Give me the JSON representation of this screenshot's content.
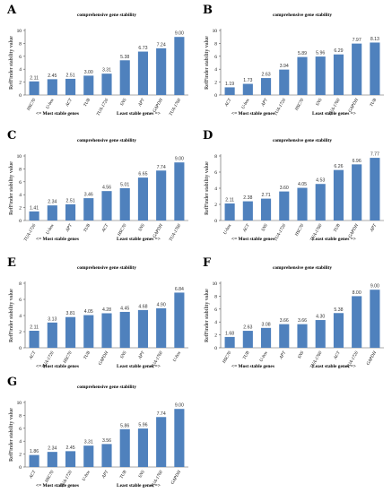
{
  "chart_data": [
    {
      "type": "bar",
      "panel": "A",
      "title": "comprehensive gene stability",
      "ylabel": "RefFinder stability value",
      "ylim": [
        0,
        10
      ],
      "yticks": [
        "0",
        "2",
        "4",
        "6",
        "8",
        "10"
      ],
      "categories": [
        "HSC70",
        "U-box",
        "ACT",
        "TUB",
        "TUA-1726",
        "SNS",
        "APT",
        "GAPDH",
        "TUA-1760"
      ],
      "values": [
        2.11,
        2.45,
        2.51,
        3.0,
        3.31,
        5.38,
        6.73,
        7.24,
        9.0
      ],
      "value_labels": [
        "2.11",
        "2.45",
        "2.51",
        "3.00",
        "3.31",
        "5.38",
        "6.73",
        "7.24",
        "9.00"
      ],
      "footer_left": "<= Most stable genes",
      "footer_right": "Least stable genes =>",
      "grid": false,
      "legend": "none"
    },
    {
      "type": "bar",
      "panel": "B",
      "title": "comprehensive gene stability",
      "ylabel": "RefFinder stability value",
      "ylim": [
        0,
        10
      ],
      "yticks": [
        "0",
        "2",
        "4",
        "6",
        "8",
        "10"
      ],
      "categories": [
        "ACT",
        "U-box",
        "APT",
        "TUA-1726",
        "HSC70",
        "SNS",
        "TUA-1760",
        "GAPDH",
        "TUB"
      ],
      "values": [
        1.19,
        1.73,
        2.63,
        3.94,
        5.89,
        5.96,
        6.29,
        7.97,
        8.13
      ],
      "value_labels": [
        "1.19",
        "1.73",
        "2.63",
        "3.94",
        "5.89",
        "5.96",
        "6.29",
        "7.97",
        "8.13"
      ],
      "footer_left": "<= Most stable genes",
      "footer_right": "Least stable genes =>",
      "grid": false,
      "legend": "none"
    },
    {
      "type": "bar",
      "panel": "C",
      "title": "comprehensive gene stability",
      "ylabel": "RefFinder stability value",
      "ylim": [
        0,
        10
      ],
      "yticks": [
        "0",
        "2",
        "4",
        "6",
        "8",
        "10"
      ],
      "categories": [
        "TUA-1726",
        "U-box",
        "APT",
        "TUB",
        "ACT",
        "HSC70",
        "SNS",
        "GAPDH",
        "TUA-1760"
      ],
      "values": [
        1.41,
        2.34,
        2.51,
        3.46,
        4.56,
        5.01,
        6.65,
        7.74,
        9.0
      ],
      "value_labels": [
        "1.41",
        "2.34",
        "2.51",
        "3.46",
        "4.56",
        "5.01",
        "6.65",
        "7.74",
        "9.00"
      ],
      "footer_left": "<= Most stable genes",
      "footer_right": "Least stable genes =>",
      "grid": false,
      "legend": "none"
    },
    {
      "type": "bar",
      "panel": "D",
      "title": "comprehensive gene stability",
      "ylabel": "RefFinder stability value",
      "ylim": [
        0,
        8
      ],
      "yticks": [
        "0",
        "2",
        "4",
        "6",
        "8"
      ],
      "categories": [
        "U-box",
        "ACT",
        "SNS",
        "TUA-1726",
        "HSC70",
        "TUA-1760",
        "TUB",
        "GAPDH",
        "APT"
      ],
      "values": [
        2.11,
        2.38,
        2.71,
        3.6,
        4.05,
        4.53,
        6.26,
        6.96,
        7.77
      ],
      "value_labels": [
        "2.11",
        "2.38",
        "2.71",
        "3.60",
        "4.05",
        "4.53",
        "6.26",
        "6.96",
        "7.77"
      ],
      "footer_left": "<= Most stable genes",
      "footer_right": "Least stable genes =>",
      "grid": false,
      "legend": "none"
    },
    {
      "type": "bar",
      "panel": "E",
      "title": "comprehensive gene stability",
      "ylabel": "RefFinder stability value",
      "ylim": [
        0,
        8
      ],
      "yticks": [
        "0",
        "2",
        "4",
        "6",
        "8"
      ],
      "categories": [
        "ACT",
        "TUA-1726",
        "HSC70",
        "TUB",
        "GAPDH",
        "SNS",
        "APT",
        "TUA-1760",
        "U-box"
      ],
      "values": [
        2.11,
        3.13,
        3.81,
        4.05,
        4.28,
        4.45,
        4.68,
        4.9,
        6.84
      ],
      "value_labels": [
        "2.11",
        "3.13",
        "3.81",
        "4.05",
        "4.28",
        "4.45",
        "4.68",
        "4.90",
        "6.84"
      ],
      "footer_left": "<= Most stable genes",
      "footer_right": "Least stable genes =>",
      "grid": false,
      "legend": "none"
    },
    {
      "type": "bar",
      "panel": "F",
      "title": "comprehensive gene stability",
      "ylabel": "RefFinder stability value",
      "ylim": [
        0,
        10
      ],
      "yticks": [
        "0",
        "2",
        "4",
        "6",
        "8",
        "10"
      ],
      "categories": [
        "HSC70",
        "TUB",
        "U-box",
        "APT",
        "SNS",
        "TUA-1760",
        "ACT",
        "TUA-1726",
        "GAPDH"
      ],
      "values": [
        1.68,
        2.63,
        3.08,
        3.66,
        3.66,
        4.3,
        5.38,
        8.0,
        9.0
      ],
      "value_labels": [
        "1.68",
        "2.63",
        "3.08",
        "3.66",
        "3.66",
        "4.30",
        "5.38",
        "8.00",
        "9.00"
      ],
      "footer_left": "<= Most stable genes",
      "footer_right": "Least stable genes =>",
      "grid": false,
      "legend": "none"
    },
    {
      "type": "bar",
      "panel": "G",
      "title": "comprehensive gene stability",
      "ylabel": "RefFinder stability value",
      "ylim": [
        0,
        10
      ],
      "yticks": [
        "0",
        "2",
        "4",
        "6",
        "8",
        "10"
      ],
      "categories": [
        "ACT",
        "HSC70",
        "TUA-1726",
        "U-box",
        "APT",
        "TUB",
        "SNS",
        "TUA-1760",
        "GAPDH"
      ],
      "values": [
        1.86,
        2.34,
        2.45,
        3.31,
        3.56,
        5.86,
        5.96,
        7.74,
        9.0
      ],
      "value_labels": [
        "1.86",
        "2.34",
        "2.45",
        "3.31",
        "3.56",
        "5.86",
        "5.96",
        "7.74",
        "9.00"
      ],
      "footer_left": "<= Most stable genes",
      "footer_right": "Least stable genes =>",
      "grid": false,
      "legend": "none"
    }
  ],
  "colors": {
    "bar": "#4f81bd",
    "axis": "#555555"
  }
}
